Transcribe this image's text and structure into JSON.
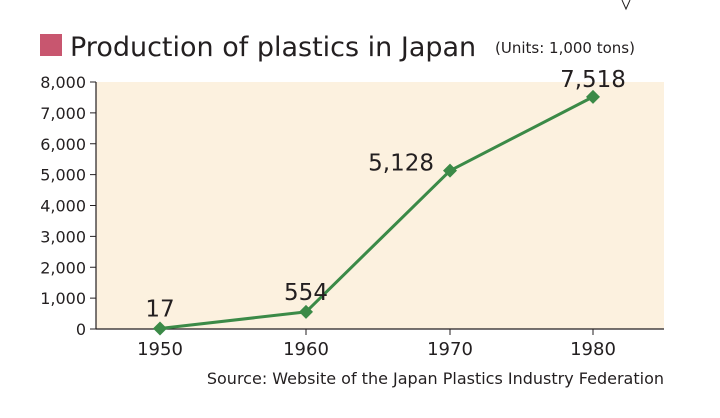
{
  "chart_data": {
    "type": "line",
    "title": "Production of plastics in Japan",
    "subtitle": "(Units: 1,000 tons)",
    "xlabel": "",
    "ylabel": "",
    "categories": [
      "1950",
      "1960",
      "1970",
      "1980"
    ],
    "series": [
      {
        "values": [
          17,
          554,
          5128,
          7518
        ],
        "labels": [
          "17",
          "554",
          "5,128",
          "7,518"
        ]
      }
    ],
    "ylim": [
      0,
      8000
    ],
    "yticks": [
      0,
      1000,
      2000,
      3000,
      4000,
      5000,
      6000,
      7000,
      8000
    ],
    "ytick_labels": [
      "0",
      "1,000",
      "2,000",
      "3,000",
      "4,000",
      "5,000",
      "6,000",
      "7,000",
      "8,000"
    ],
    "source": "Source: Website of the Japan Plastics Industry Federation",
    "grid": false,
    "colors": {
      "line": "#3b8a47",
      "marker": "#3b8a47",
      "plot_background": "#fcf1df",
      "title_square": "#c8566f",
      "axis": "#231f20"
    }
  }
}
